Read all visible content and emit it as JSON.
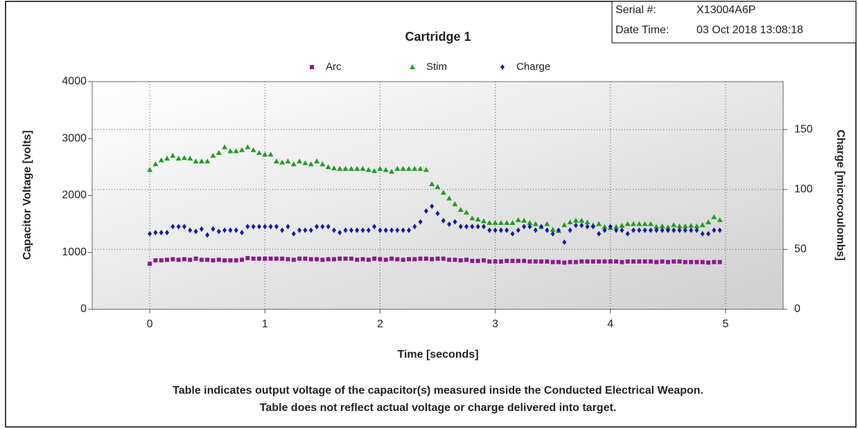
{
  "chart_data": {
    "type": "scatter",
    "title": "Cartridge 1",
    "xlabel": "Time [seconds]",
    "ylabel": "Capacitor Voltage [volts]",
    "y2label": "Charge [microcoulombs]",
    "xlim": [
      -0.5,
      5.5
    ],
    "xticks": [
      0,
      1,
      2,
      3,
      4,
      5
    ],
    "ylim": [
      0,
      4000
    ],
    "yticks": [
      0,
      1000,
      2000,
      3000,
      4000
    ],
    "y2lim": [
      0,
      190
    ],
    "y2ticks": [
      0,
      50,
      100,
      150
    ],
    "grid": true,
    "legend": "top",
    "x": [
      0,
      0.05,
      0.1,
      0.15,
      0.2,
      0.25,
      0.3,
      0.35,
      0.4,
      0.45,
      0.5,
      0.55,
      0.6,
      0.65,
      0.7,
      0.75,
      0.8,
      0.85,
      0.9,
      0.95,
      1,
      1.05,
      1.1,
      1.15,
      1.2,
      1.25,
      1.3,
      1.35,
      1.4,
      1.45,
      1.5,
      1.55,
      1.6,
      1.65,
      1.7,
      1.75,
      1.8,
      1.85,
      1.9,
      1.95,
      2,
      2.05,
      2.1,
      2.15,
      2.2,
      2.25,
      2.3,
      2.35,
      2.4,
      2.45,
      2.5,
      2.55,
      2.6,
      2.65,
      2.7,
      2.75,
      2.8,
      2.85,
      2.9,
      2.95,
      3,
      3.05,
      3.1,
      3.15,
      3.2,
      3.25,
      3.3,
      3.35,
      3.4,
      3.45,
      3.5,
      3.55,
      3.6,
      3.65,
      3.7,
      3.75,
      3.8,
      3.85,
      3.9,
      3.95,
      4,
      4.05,
      4.1,
      4.15,
      4.2,
      4.25,
      4.3,
      4.35,
      4.4,
      4.45,
      4.5,
      4.55,
      4.6,
      4.65,
      4.7,
      4.75,
      4.8,
      4.85,
      4.9,
      4.95
    ],
    "series": [
      {
        "name": "Arc",
        "color": "#8b1a8b",
        "marker": "square",
        "values": [
          800,
          860,
          860,
          870,
          880,
          870,
          880,
          870,
          890,
          870,
          870,
          860,
          870,
          860,
          860,
          860,
          870,
          900,
          890,
          890,
          890,
          890,
          890,
          890,
          880,
          870,
          890,
          890,
          880,
          880,
          870,
          880,
          880,
          890,
          890,
          890,
          870,
          880,
          870,
          890,
          880,
          870,
          890,
          880,
          870,
          880,
          880,
          890,
          890,
          880,
          890,
          890,
          870,
          870,
          860,
          870,
          850,
          850,
          860,
          840,
          840,
          840,
          850,
          850,
          850,
          850,
          840,
          840,
          840,
          840,
          830,
          830,
          820,
          830,
          830,
          840,
          840,
          840,
          840,
          840,
          840,
          840,
          830,
          840,
          840,
          840,
          840,
          840,
          830,
          840,
          830,
          840,
          840,
          830,
          830,
          830,
          830,
          820,
          830,
          830
        ]
      },
      {
        "name": "Stim",
        "color": "#1e9e1e",
        "marker": "triangle",
        "values": [
          2450,
          2550,
          2620,
          2650,
          2700,
          2650,
          2660,
          2650,
          2600,
          2600,
          2600,
          2700,
          2750,
          2850,
          2780,
          2780,
          2800,
          2850,
          2800,
          2750,
          2720,
          2720,
          2600,
          2580,
          2600,
          2550,
          2600,
          2570,
          2550,
          2600,
          2550,
          2500,
          2480,
          2470,
          2470,
          2470,
          2470,
          2470,
          2450,
          2430,
          2470,
          2450,
          2420,
          2470,
          2470,
          2470,
          2470,
          2470,
          2450,
          2200,
          2150,
          2050,
          1950,
          1850,
          1750,
          1700,
          1600,
          1580,
          1550,
          1520,
          1520,
          1520,
          1520,
          1520,
          1570,
          1560,
          1520,
          1500,
          1450,
          1500,
          1400,
          1380,
          1480,
          1530,
          1560,
          1560,
          1530,
          1480,
          1500,
          1450,
          1430,
          1450,
          1470,
          1500,
          1500,
          1500,
          1500,
          1500,
          1450,
          1460,
          1440,
          1480,
          1460,
          1460,
          1470,
          1460,
          1480,
          1530,
          1620,
          1570
        ]
      },
      {
        "name": "Charge",
        "color": "#1a1aa0",
        "marker": "diamond",
        "axis": "y2",
        "values": [
          63,
          64,
          64,
          64,
          69,
          69,
          69,
          66,
          65,
          67,
          62,
          67,
          65,
          66,
          66,
          66,
          64,
          69,
          69,
          69,
          69,
          69,
          69,
          66,
          69,
          63,
          66,
          66,
          66,
          69,
          69,
          69,
          66,
          64,
          66,
          66,
          66,
          66,
          66,
          69,
          66,
          66,
          66,
          66,
          66,
          66,
          69,
          73,
          82,
          86,
          80,
          74,
          71,
          73,
          69,
          69,
          69,
          69,
          69,
          66,
          66,
          66,
          66,
          63,
          66,
          69,
          69,
          66,
          69,
          66,
          63,
          66,
          56,
          66,
          70,
          70,
          69,
          69,
          63,
          66,
          69,
          66,
          66,
          63,
          66,
          66,
          66,
          66,
          66,
          66,
          66,
          66,
          66,
          66,
          66,
          66,
          63,
          63,
          66,
          66
        ]
      }
    ]
  },
  "info": {
    "serial_label": "Serial #:",
    "serial": "X13004A6P",
    "date_label": "Date Time:",
    "date": "03 Oct 2018 13:08:18"
  },
  "notes": [
    "Table indicates output voltage of the capacitor(s) measured inside the Conducted Electrical Weapon.",
    "Table does not reflect actual voltage or charge delivered into target."
  ]
}
